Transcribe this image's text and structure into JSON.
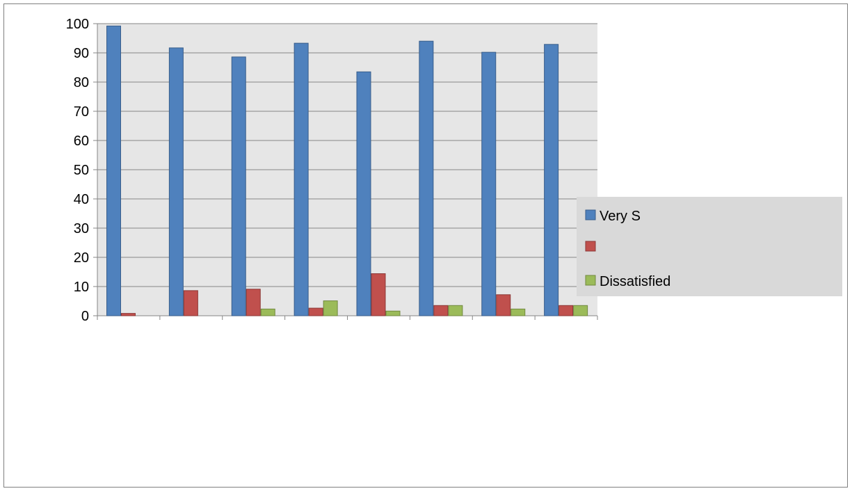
{
  "chart_data": {
    "type": "bar",
    "title": "",
    "xlabel": "",
    "ylabel": "",
    "ylim": [
      0,
      100
    ],
    "yticks": [
      0,
      10,
      20,
      30,
      40,
      50,
      60,
      70,
      80,
      90,
      100
    ],
    "grid": true,
    "legend_position": "right",
    "categories": [
      "",
      "",
      "",
      "",
      "",
      "",
      "",
      ""
    ],
    "series": [
      {
        "name": "Very S",
        "color": "#4f81bd",
        "stroke": "#385d8a",
        "values": [
          99.2,
          91.7,
          88.6,
          93.3,
          83.5,
          94.0,
          90.2,
          92.9
        ]
      },
      {
        "name": "",
        "color": "#c0504d",
        "stroke": "#8c3836",
        "values": [
          0.8,
          8.6,
          9.1,
          2.6,
          14.4,
          3.5,
          7.2,
          3.5
        ]
      },
      {
        "name": "Dissatisfied",
        "color": "#9bbb59",
        "stroke": "#71893f",
        "values": [
          0,
          0,
          2.3,
          5.1,
          1.6,
          3.5,
          2.3,
          3.5
        ]
      }
    ],
    "plot_background": "#e6e6e6",
    "legend_background": "#d9d9d9"
  }
}
